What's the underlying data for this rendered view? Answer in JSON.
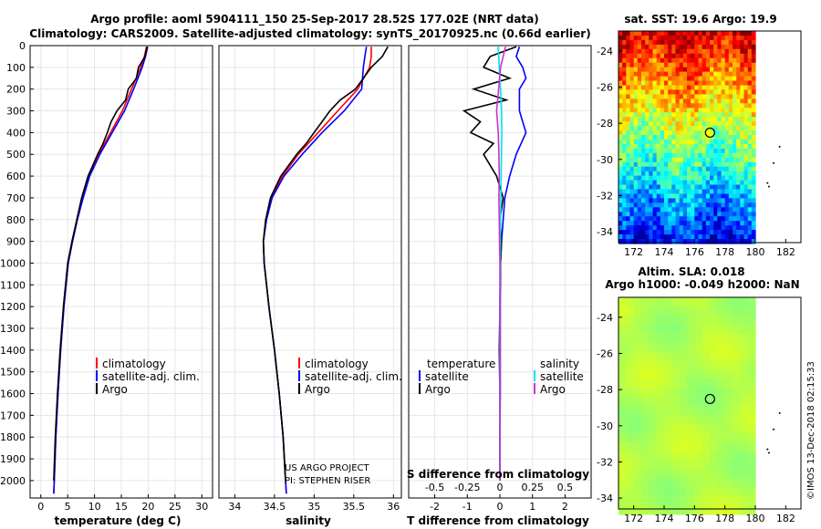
{
  "header": {
    "line1": "Argo profile: aoml 5904111_150 25-Sep-2017 28.52S 177.02E (NRT data)",
    "line2": "Climatology: CARS2009. Satellite-adjusted climatology: synTS_20170925.nc (0.66d earlier)"
  },
  "footer": {
    "project": "US ARGO PROJECT",
    "pi": "PI: STEPHEN RISER",
    "credit": "©IMOS 13-Dec-2018 02:15:33"
  },
  "colors": {
    "climatology": "#ff0000",
    "satellite": "#0000ff",
    "argo": "#000000",
    "sat_salinity": "#00e5ee",
    "argo_salinity": "#cc33cc"
  },
  "chart_data": [
    {
      "type": "line",
      "name": "temperature",
      "xlabel": "temperature (deg C)",
      "ylabel": "",
      "xlim": [
        -2,
        32
      ],
      "ylim": [
        2080,
        0
      ],
      "xticks": [
        0,
        5,
        10,
        15,
        20,
        25,
        30
      ],
      "yticks": [
        0,
        100,
        200,
        300,
        400,
        500,
        600,
        700,
        800,
        900,
        1000,
        1100,
        1200,
        1300,
        1400,
        1500,
        1600,
        1700,
        1800,
        1900,
        2000
      ],
      "legend": [
        "climatology",
        "satellite-adj. clim.",
        "Argo"
      ],
      "series": [
        {
          "name": "climatology",
          "color": "#ff0000",
          "depth": [
            5,
            50,
            100,
            200,
            300,
            400,
            500,
            600,
            700,
            800,
            900,
            1000,
            1200,
            1400,
            1600,
            1800,
            2000,
            2060
          ],
          "values": [
            19.7,
            19.3,
            18.6,
            16.9,
            15.2,
            13.0,
            10.8,
            9.0,
            7.8,
            6.8,
            5.9,
            5.1,
            4.3,
            3.7,
            3.2,
            2.8,
            2.5,
            2.4
          ]
        },
        {
          "name": "satellite-adj. clim.",
          "color": "#0000ff",
          "depth": [
            5,
            50,
            100,
            200,
            300,
            400,
            500,
            600,
            700,
            800,
            900,
            1000,
            1200,
            1400,
            1600,
            1800,
            2000,
            2060
          ],
          "values": [
            19.9,
            19.5,
            18.9,
            17.3,
            15.6,
            13.3,
            11.0,
            9.1,
            7.9,
            6.8,
            5.9,
            5.1,
            4.3,
            3.7,
            3.2,
            2.8,
            2.5,
            2.4
          ]
        },
        {
          "name": "Argo",
          "color": "#000000",
          "depth": [
            5,
            50,
            100,
            150,
            200,
            250,
            300,
            350,
            400,
            450,
            500,
            600,
            700,
            800,
            900,
            1000,
            1200,
            1400,
            1600,
            1800,
            2000
          ],
          "values": [
            19.8,
            19.4,
            18.2,
            17.8,
            16.3,
            15.8,
            14.2,
            13.1,
            12.4,
            11.6,
            10.6,
            8.8,
            7.6,
            6.7,
            5.8,
            5.0,
            4.2,
            3.6,
            3.1,
            2.7,
            2.4
          ]
        }
      ]
    },
    {
      "type": "line",
      "name": "salinity",
      "xlabel": "salinity",
      "xlim": [
        33.8,
        36.1
      ],
      "ylim": [
        2080,
        0
      ],
      "xticks": [
        34,
        34.5,
        35,
        35.5,
        36
      ],
      "legend": [
        "climatology",
        "satellite-adj. clim.",
        "Argo"
      ],
      "series": [
        {
          "name": "climatology",
          "color": "#ff0000",
          "depth": [
            5,
            50,
            100,
            200,
            300,
            400,
            500,
            600,
            700,
            800,
            900,
            1000,
            1200,
            1400,
            1600,
            1800,
            2000,
            2060
          ],
          "values": [
            35.72,
            35.72,
            35.7,
            35.55,
            35.3,
            35.05,
            34.8,
            34.6,
            34.46,
            34.39,
            34.36,
            34.37,
            34.43,
            34.5,
            34.56,
            34.61,
            34.64,
            34.65
          ]
        },
        {
          "name": "satellite-adj. clim.",
          "color": "#0000ff",
          "depth": [
            5,
            50,
            100,
            200,
            300,
            400,
            500,
            600,
            700,
            800,
            900,
            1000,
            1200,
            1400,
            1600,
            1800,
            2000,
            2060
          ],
          "values": [
            35.66,
            35.64,
            35.62,
            35.6,
            35.38,
            35.1,
            34.85,
            34.62,
            34.47,
            34.4,
            34.36,
            34.37,
            34.43,
            34.5,
            34.56,
            34.61,
            34.64,
            34.65
          ]
        },
        {
          "name": "Argo",
          "color": "#000000",
          "depth": [
            5,
            50,
            100,
            150,
            200,
            250,
            300,
            350,
            400,
            450,
            500,
            600,
            700,
            800,
            900,
            1000,
            1200,
            1400,
            1600,
            1800,
            2000
          ],
          "values": [
            35.93,
            35.86,
            35.72,
            35.62,
            35.52,
            35.33,
            35.2,
            35.1,
            35.0,
            34.9,
            34.78,
            34.58,
            34.45,
            34.39,
            34.36,
            34.37,
            34.43,
            34.5,
            34.56,
            34.61,
            34.64
          ]
        }
      ]
    },
    {
      "type": "line",
      "name": "difference",
      "xlabel": "T difference from climatology",
      "xlabel_top": "S difference from climatology",
      "xlim": [
        -2.8,
        2.8
      ],
      "ylim": [
        2080,
        0
      ],
      "xticks": [
        -2,
        -1,
        0,
        1,
        2
      ],
      "xticks_top": [
        "-0.5",
        "-0.25",
        "0",
        "0.25",
        "0.5"
      ],
      "legend": [
        "temperature",
        "satellite",
        "Argo",
        "salinity",
        "satellite",
        "Argo"
      ],
      "series": [
        {
          "name": "T satellite",
          "color": "#0000ff",
          "depth": [
            5,
            50,
            100,
            150,
            200,
            250,
            300,
            350,
            400,
            500,
            600,
            700,
            800,
            900,
            1000,
            1200,
            1400,
            1600,
            1800,
            2000
          ],
          "values": [
            0.6,
            0.5,
            0.7,
            0.8,
            0.6,
            0.6,
            0.6,
            0.7,
            0.8,
            0.5,
            0.3,
            0.15,
            0.1,
            0.05,
            0.02,
            0.01,
            0.01,
            0.01,
            0.0,
            0.0
          ]
        },
        {
          "name": "T Argo",
          "color": "#000000",
          "depth": [
            5,
            50,
            100,
            150,
            200,
            250,
            300,
            350,
            400,
            450,
            500,
            550,
            600,
            700,
            800,
            900,
            1000,
            1200,
            1400,
            1600,
            1800,
            2000
          ],
          "values": [
            0.5,
            -0.3,
            -0.5,
            0.3,
            -0.8,
            0.2,
            -1.1,
            -0.6,
            -0.9,
            -0.2,
            -0.5,
            -0.3,
            -0.1,
            0.1,
            0.0,
            0.05,
            0.02,
            0.0,
            -0.02,
            0.0,
            0.0,
            0.0
          ]
        },
        {
          "name": "S satellite",
          "color": "#00e5ee",
          "depth": [
            5,
            50,
            100,
            150,
            200,
            300,
            400,
            500,
            600,
            700,
            800,
            1000,
            1200,
            1400,
            1600,
            1800,
            2000
          ],
          "values": [
            -0.06,
            -0.04,
            -0.02,
            0.0,
            0.02,
            0.05,
            0.06,
            0.05,
            0.04,
            0.03,
            0.02,
            0.01,
            0.0,
            0.0,
            0.0,
            0.0,
            0.0
          ]
        },
        {
          "name": "S Argo",
          "color": "#cc33cc",
          "depth": [
            5,
            50,
            100,
            200,
            300,
            400,
            500,
            600,
            700,
            800,
            900,
            1000,
            1200,
            1400,
            1600,
            1800,
            2000
          ],
          "values": [
            0.17,
            0.1,
            0.02,
            -0.04,
            -0.1,
            -0.05,
            -0.03,
            -0.02,
            -0.03,
            -0.02,
            -0.01,
            0.0,
            0.0,
            0.0,
            0.0,
            0.0,
            0.0
          ]
        }
      ]
    },
    {
      "type": "heatmap",
      "name": "sst-map",
      "title": "sat. SST: 19.6 Argo: 19.9",
      "xlim": [
        171,
        183
      ],
      "ylim": [
        -34.6,
        -22.9
      ],
      "xticks": [
        172,
        174,
        176,
        178,
        180,
        182
      ],
      "yticks": [
        -24,
        -26,
        -28,
        -30,
        -32,
        -34
      ],
      "argo_position": [
        177.02,
        -28.52
      ]
    },
    {
      "type": "heatmap",
      "name": "sla-map",
      "title": "Altim. SLA: 0.018",
      "subtitle": "Argo h1000: -0.049 h2000: NaN",
      "xlim": [
        171,
        183
      ],
      "ylim": [
        -34.6,
        -22.9
      ],
      "xticks": [
        172,
        174,
        176,
        178,
        180,
        182
      ],
      "yticks": [
        -24,
        -26,
        -28,
        -30,
        -32,
        -34
      ],
      "argo_position": [
        177.02,
        -28.52
      ]
    }
  ]
}
